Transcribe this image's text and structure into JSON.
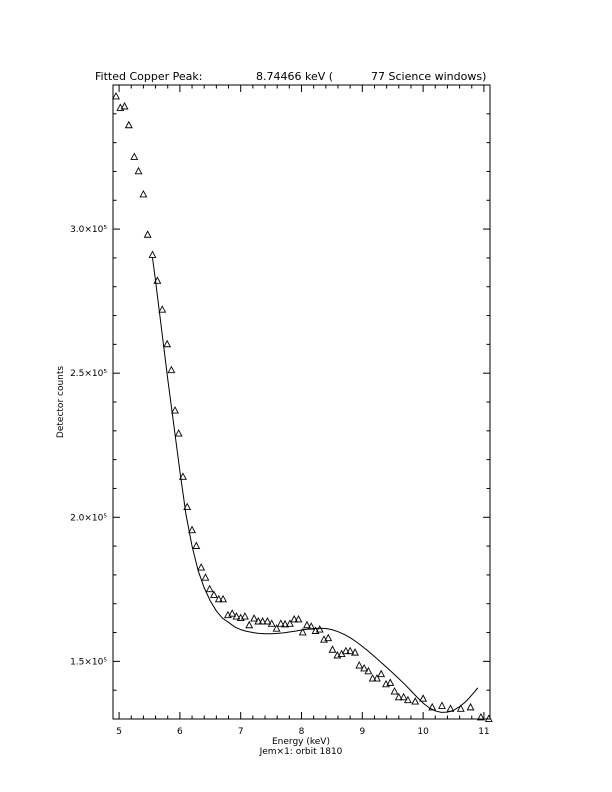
{
  "header": {
    "title_left": "Fitted Copper Peak:",
    "title_value": "8.74466 keV (",
    "title_right": "77 Science windows)"
  },
  "footer": {
    "subtitle": "Jem×1: orbit 1810"
  },
  "chart_data": {
    "type": "scatter",
    "title": "Fitted Copper Peak: 8.74466 keV ( 77 Science windows)",
    "xlabel": "Energy (keV)",
    "ylabel": "Detector counts",
    "xlim": [
      4.9,
      11.1
    ],
    "ylim": [
      130000,
      350000
    ],
    "xticks": [
      5,
      6,
      7,
      8,
      9,
      10,
      11
    ],
    "x_tick_labels": [
      "5",
      "6",
      "7",
      "8",
      "9",
      "10",
      "11"
    ],
    "yticks": [
      150000,
      200000,
      250000,
      300000
    ],
    "y_tick_labels": [
      "1.5×10⁵",
      "2.0×10⁵",
      "2.5×10⁵",
      "3.0×10⁵"
    ],
    "grid": false,
    "legend": "none",
    "series": [
      {
        "kind": "points",
        "marker": "triangle",
        "x": [
          4.95,
          5.02,
          5.09,
          5.16,
          5.25,
          5.32,
          5.4,
          5.47,
          5.55,
          5.63,
          5.71,
          5.79,
          5.86,
          5.92,
          5.98,
          6.05,
          6.12,
          6.2,
          6.27,
          6.35,
          6.42,
          6.49,
          6.56,
          6.64,
          6.71,
          6.79,
          6.86,
          6.93,
          7.0,
          7.07,
          7.14,
          7.22,
          7.29,
          7.36,
          7.44,
          7.51,
          7.59,
          7.66,
          7.73,
          7.81,
          7.88,
          7.95,
          8.02,
          8.09,
          8.16,
          8.23,
          8.3,
          8.37,
          8.44,
          8.51,
          8.59,
          8.66,
          8.73,
          8.8,
          8.88,
          8.95,
          9.03,
          9.1,
          9.17,
          9.24,
          9.31,
          9.39,
          9.46,
          9.53,
          9.6,
          9.68,
          9.75,
          9.87,
          10.0,
          10.15,
          10.31,
          10.45,
          10.62,
          10.78,
          10.95,
          11.08
        ],
        "y": [
          346000,
          342000,
          342500,
          336000,
          325000,
          320000,
          312000,
          298000,
          291000,
          282000,
          272000,
          260000,
          251000,
          237000,
          229000,
          214000,
          203500,
          195500,
          190000,
          182500,
          179000,
          175000,
          173000,
          171500,
          171500,
          166000,
          166500,
          165500,
          165000,
          165500,
          162500,
          164800,
          163800,
          163800,
          163800,
          163000,
          161300,
          163000,
          162800,
          163000,
          164500,
          164500,
          160000,
          162500,
          162000,
          160500,
          161000,
          157500,
          158000,
          154000,
          152000,
          152500,
          153500,
          153500,
          153000,
          148500,
          147500,
          146500,
          144000,
          144000,
          145500,
          142000,
          142500,
          139500,
          137500,
          137500,
          136500,
          136000,
          137000,
          134000,
          134500,
          133500,
          133500,
          134000,
          130500,
          130000
        ]
      },
      {
        "kind": "fit",
        "style": "line",
        "x": [
          5.55,
          5.6,
          5.7,
          5.8,
          5.9,
          6.0,
          6.1,
          6.2,
          6.3,
          6.4,
          6.5,
          6.6,
          6.7,
          6.8,
          6.9,
          7.0,
          7.1,
          7.2,
          7.3,
          7.4,
          7.5,
          7.6,
          7.7,
          7.8,
          7.9,
          8.0,
          8.1,
          8.2,
          8.3,
          8.4,
          8.5,
          8.6,
          8.7,
          8.8,
          8.9,
          9.0,
          9.1,
          9.2,
          9.3,
          9.4,
          9.5,
          9.6,
          9.7,
          9.8,
          9.9,
          10.0,
          10.1,
          10.2,
          10.3,
          10.4,
          10.5,
          10.6,
          10.7,
          10.8,
          10.9
        ],
        "y": [
          290000,
          282000,
          265000,
          248000,
          232000,
          216000,
          201000,
          190000,
          181500,
          175500,
          171000,
          167500,
          165000,
          163500,
          162000,
          161000,
          160400,
          160000,
          159700,
          159600,
          159600,
          159700,
          159900,
          160200,
          160500,
          160900,
          161200,
          161400,
          161500,
          161400,
          161000,
          160300,
          159400,
          158200,
          156800,
          155200,
          153500,
          151700,
          149800,
          147900,
          146000,
          144000,
          142000,
          139800,
          137600,
          135500,
          133900,
          132800,
          132300,
          132400,
          133000,
          134300,
          136000,
          138300,
          140800
        ]
      }
    ]
  }
}
